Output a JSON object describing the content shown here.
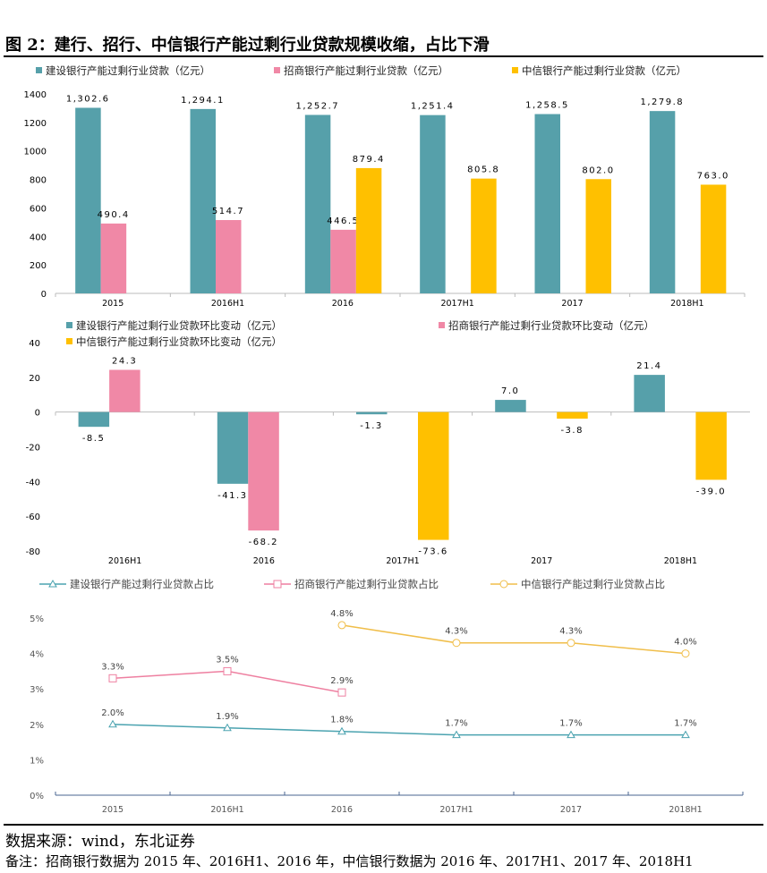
{
  "title": "图 2：建行、招行、中信银行产能过剩行业贷款规模收缩，占比下滑",
  "source": "数据来源：wind，东北证券",
  "note": "备注：招商银行数据为 2015 年、2016H1、2016 年，中信银行数据为 2016 年、2017H1、2017 年、2018H1",
  "colors": {
    "ccb": "#56A0AA",
    "cmb": "#F088A6",
    "citic": "#FFC000",
    "ccb_line": "#4BA3B0",
    "cmb_line": "#EE7FA0",
    "citic_line": "#F0BE4A"
  },
  "chart_data": [
    {
      "type": "bar",
      "categories": [
        "2015",
        "2016H1",
        "2016",
        "2017H1",
        "2017",
        "2018H1"
      ],
      "ylim": [
        0,
        1400
      ],
      "yticks": [
        "0",
        "200",
        "400",
        "600",
        "800",
        "1000",
        "1200",
        "1400"
      ],
      "legend": "top",
      "series": [
        {
          "name": "建设银行产能过剩行业贷款（亿元）",
          "values": [
            1302.6,
            1294.1,
            1252.7,
            1251.4,
            1258.5,
            1279.8
          ],
          "labels": [
            "1,302.6",
            "1,294.1",
            "1,252.7",
            "1,251.4",
            "1,258.5",
            "1,279.8"
          ]
        },
        {
          "name": "招商银行产能过剩行业贷款（亿元）",
          "values": [
            490.4,
            514.7,
            446.5,
            null,
            null,
            null
          ],
          "labels": [
            "490.4",
            "514.7",
            "446.5",
            "",
            "",
            ""
          ]
        },
        {
          "name": "中信银行产能过剩行业贷款（亿元）",
          "values": [
            null,
            null,
            879.4,
            805.8,
            802.0,
            763.0
          ],
          "labels": [
            "",
            "",
            "879.4",
            "805.8",
            "802.0",
            "763.0"
          ]
        }
      ]
    },
    {
      "type": "bar",
      "categories": [
        "2016H1",
        "2016",
        "2017H1",
        "2017",
        "2018H1"
      ],
      "ylim": [
        -80,
        40
      ],
      "yticks": [
        "-80",
        "-60",
        "-40",
        "-20",
        "0",
        "20",
        "40"
      ],
      "legend": "top",
      "series": [
        {
          "name": "建设银行产能过剩行业贷款环比变动（亿元）",
          "values": [
            -8.5,
            -41.3,
            -1.3,
            7.0,
            21.4
          ],
          "labels": [
            "-8.5",
            "-41.3",
            "-1.3",
            "7.0",
            "21.4"
          ]
        },
        {
          "name": "招商银行产能过剩行业贷款环比变动（亿元）",
          "values": [
            24.3,
            -68.2,
            null,
            null,
            null
          ],
          "labels": [
            "24.3",
            "-68.2",
            "",
            "",
            ""
          ]
        },
        {
          "name": "中信银行产能过剩行业贷款环比变动（亿元）",
          "values": [
            null,
            null,
            -73.6,
            -3.8,
            -39.0
          ],
          "labels": [
            "",
            "",
            "-73.6",
            "-3.8",
            "-39.0"
          ]
        }
      ]
    },
    {
      "type": "line",
      "categories": [
        "2015",
        "2016H1",
        "2016",
        "2017H1",
        "2017",
        "2018H1"
      ],
      "ylim": [
        0,
        5
      ],
      "yticks": [
        "0%",
        "1%",
        "2%",
        "3%",
        "4%",
        "5%"
      ],
      "legend": "top",
      "series": [
        {
          "name": "建设银行产能过剩行业贷款占比",
          "marker": "triangle",
          "values": [
            2.0,
            1.9,
            1.8,
            1.7,
            1.7,
            1.7
          ],
          "labels": [
            "2.0%",
            "1.9%",
            "1.8%",
            "1.7%",
            "1.7%",
            "1.7%"
          ]
        },
        {
          "name": "招商银行产能过剩行业贷款占比",
          "marker": "square",
          "values": [
            3.3,
            3.5,
            2.9,
            null,
            null,
            null
          ],
          "labels": [
            "3.3%",
            "3.5%",
            "2.9%",
            "",
            "",
            ""
          ]
        },
        {
          "name": "中信银行产能过剩行业贷款占比",
          "marker": "circle",
          "values": [
            null,
            null,
            4.8,
            4.3,
            4.3,
            4.0
          ],
          "labels": [
            "",
            "",
            "4.8%",
            "4.3%",
            "4.3%",
            "4.0%"
          ]
        }
      ]
    }
  ]
}
